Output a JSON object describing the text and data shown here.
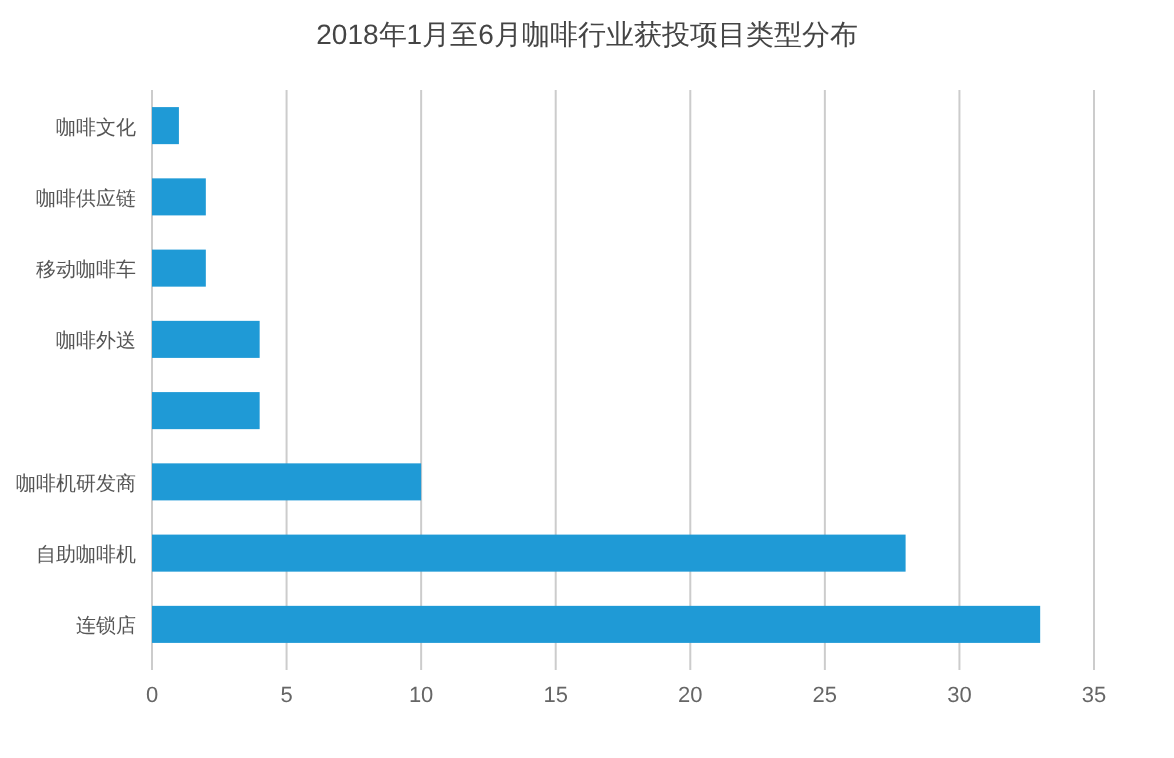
{
  "chart_data": {
    "type": "bar",
    "orientation": "horizontal",
    "title": "2018年1月至6月咖啡行业获投项目类型分布",
    "categories": [
      "咖啡文化",
      "咖啡供应链",
      "移动咖啡车",
      "咖啡外送",
      null,
      "咖啡机研发商",
      "自助咖啡机",
      "连锁店"
    ],
    "values": [
      1,
      2,
      2,
      4,
      4,
      10,
      28,
      33
    ],
    "color": "#1f9ad6",
    "xlim": [
      0,
      35
    ],
    "xticks": [
      0,
      5,
      10,
      15,
      20,
      25,
      30,
      35
    ],
    "grid": "x"
  }
}
